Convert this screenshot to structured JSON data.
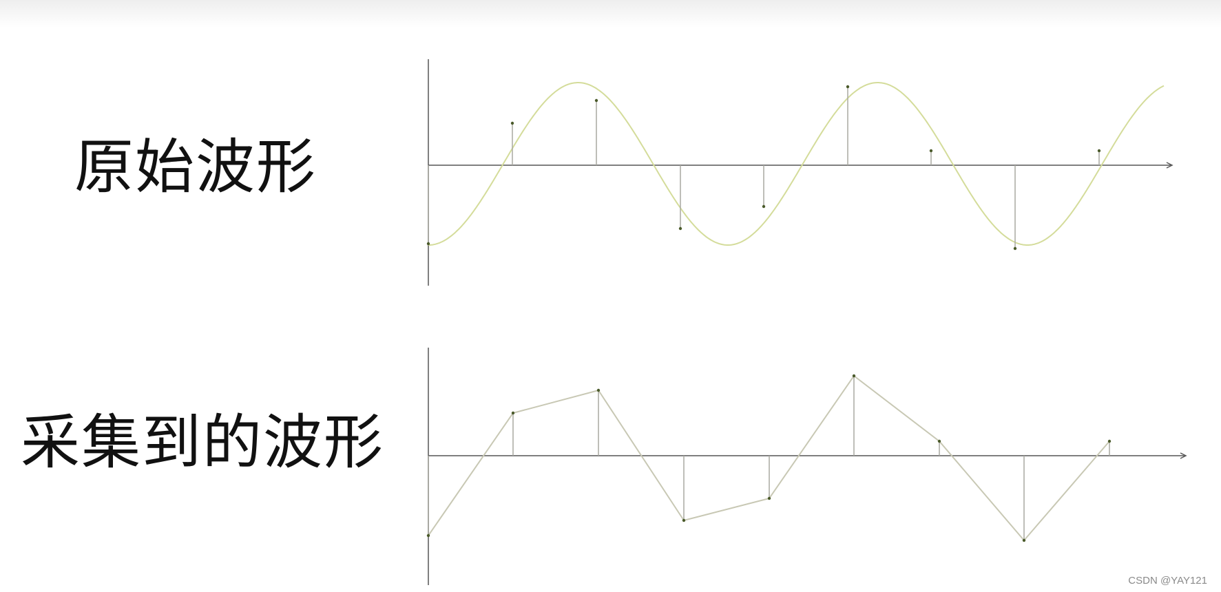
{
  "labels": {
    "original": "原始波形",
    "sampled": "采集到的波形"
  },
  "watermark": "CSDN @YAY121",
  "colors": {
    "axis": "#555555",
    "sine": "#d4dc9a",
    "sample_line": "#a8a8a0",
    "sampled_wave": "#c8c8b4",
    "point": "#4a5a2a"
  },
  "chart_data": [
    {
      "type": "line",
      "series": [
        {
          "values": "sine wave, amplitude 1, starting at -1"
        }
      ],
      "samples_t": [
        0,
        0.5,
        1,
        1.5,
        2,
        2.5,
        3,
        3.5,
        4
      ],
      "grid": false
    },
    {
      "type": "line",
      "samples_t": [
        0,
        0.5,
        1,
        1.5,
        2,
        2.5,
        3,
        3.5,
        4
      ],
      "grid": false
    }
  ]
}
